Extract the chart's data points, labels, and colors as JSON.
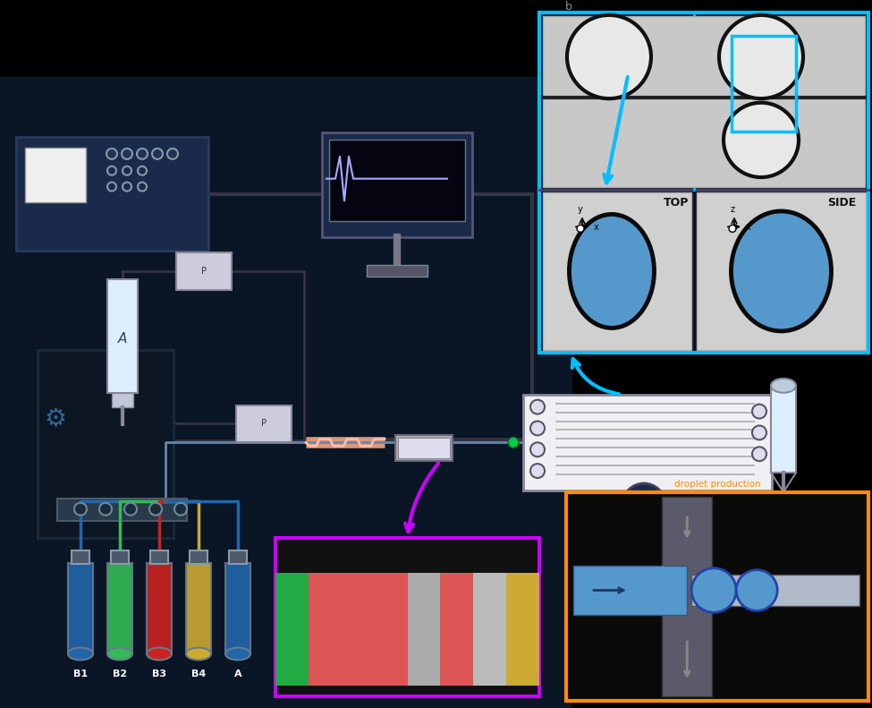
{
  "bg_color": "#000000",
  "main_bg": "#0a1525",
  "blue_border": "#00bfff",
  "orange_border": "#ff8c00",
  "purple_border": "#cc00ff",
  "droplet_blue": "#5599cc",
  "ctrl_color": "#1a2a4a",
  "stripe_colors": [
    "#22aa44",
    "#dd5555",
    "#dd5555",
    "#dd5555",
    "#aaaaaa",
    "#dd5555",
    "#bbbbbb",
    "#ccaa33"
  ],
  "vial_labels": [
    "B1",
    "B2",
    "B3",
    "B4",
    "A"
  ],
  "vial_colors": [
    "#2266aa",
    "#22aa44",
    "#cc2222",
    "#cc9922",
    "#2266aa"
  ],
  "vial_contents": [
    "#2266aa",
    "#33bb55",
    "#cc2222",
    "#ccaa33",
    "#2266aa"
  ],
  "top_label": "TOP",
  "side_label": "SIDE",
  "prod_label": "droplet production",
  "monitor_waveform_x": [
    365,
    375,
    380,
    385,
    390,
    395,
    400,
    410,
    500
  ],
  "monitor_waveform_y": [
    195,
    195,
    170,
    220,
    170,
    195,
    195,
    195,
    195
  ]
}
